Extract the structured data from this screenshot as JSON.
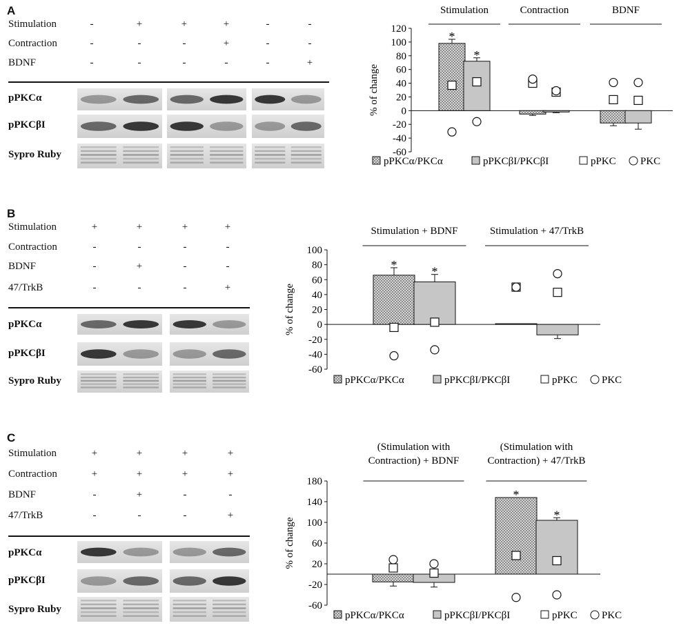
{
  "panels": [
    {
      "letter": "A",
      "conditions": [
        {
          "label": "Stimulation",
          "signs": [
            "-",
            "+",
            "+",
            "+",
            "-",
            "-"
          ]
        },
        {
          "label": "Contraction",
          "signs": [
            "-",
            "-",
            "-",
            "+",
            "-",
            "-"
          ]
        },
        {
          "label": "BDNF",
          "signs": [
            "-",
            "-",
            "-",
            "-",
            "-",
            "+"
          ]
        }
      ],
      "blots": [
        "pPKCα",
        "pPKCβI",
        "Sypro Ruby"
      ],
      "chart_data": {
        "type": "bar",
        "ylabel": "% of change",
        "ylim": [
          -60,
          120
        ],
        "yticks": [
          -60,
          -40,
          -20,
          0,
          20,
          40,
          60,
          80,
          100,
          120
        ],
        "groups": [
          "Stimulation",
          "Contraction",
          "BDNF"
        ],
        "series": [
          {
            "name": "pPKCα/PKCα",
            "values": [
              98,
              -5,
              -18
            ],
            "errors": [
              6,
              2,
              4
            ],
            "significant": [
              true,
              false,
              false
            ]
          },
          {
            "name": "pPKCβI/PKCβI",
            "values": [
              72,
              -2,
              -18
            ],
            "errors": [
              5,
              1,
              9
            ],
            "significant": [
              true,
              false,
              false
            ]
          }
        ],
        "markers": [
          {
            "name": "pPKC",
            "values": [
              [
                37,
                42
              ],
              [
                40,
                27
              ],
              [
                16,
                15
              ]
            ]
          },
          {
            "name": "PKC",
            "values": [
              [
                -31,
                -16
              ],
              [
                46,
                29
              ],
              [
                41,
                41
              ]
            ]
          }
        ]
      }
    },
    {
      "letter": "B",
      "conditions": [
        {
          "label": "Stimulation",
          "signs": [
            "+",
            "+",
            "+",
            "+"
          ]
        },
        {
          "label": "Contraction",
          "signs": [
            "-",
            "-",
            "-",
            "-"
          ]
        },
        {
          "label": "BDNF",
          "signs": [
            "-",
            "+",
            "-",
            "-"
          ]
        },
        {
          "label": "47/TrkB",
          "signs": [
            "-",
            "-",
            "-",
            "+"
          ]
        }
      ],
      "blots": [
        "pPKCα",
        "pPKCβI",
        "Sypro Ruby"
      ],
      "chart_data": {
        "type": "bar",
        "ylabel": "% of change",
        "ylim": [
          -60,
          100
        ],
        "yticks": [
          -60,
          -40,
          -20,
          0,
          20,
          40,
          60,
          80,
          100
        ],
        "groups": [
          "Stimulation + BDNF",
          "Stimulation + 47/TrkB"
        ],
        "series": [
          {
            "name": "pPKCα/PKCα",
            "values": [
              66,
              1
            ],
            "errors": [
              10,
              0
            ],
            "significant": [
              true,
              false
            ]
          },
          {
            "name": "pPKCβI/PKCβI",
            "values": [
              57,
              -14
            ],
            "errors": [
              10,
              5
            ],
            "significant": [
              true,
              false
            ]
          }
        ],
        "markers": [
          {
            "name": "pPKC",
            "values": [
              [
                -4,
                3
              ],
              [
                50,
                43
              ]
            ]
          },
          {
            "name": "PKC",
            "values": [
              [
                -42,
                -34
              ],
              [
                50,
                68
              ]
            ]
          }
        ]
      }
    },
    {
      "letter": "C",
      "conditions": [
        {
          "label": "Stimulation",
          "signs": [
            "+",
            "+",
            "+",
            "+"
          ]
        },
        {
          "label": "Contraction",
          "signs": [
            "+",
            "+",
            "+",
            "+"
          ]
        },
        {
          "label": "BDNF",
          "signs": [
            "-",
            "+",
            "-",
            "-"
          ]
        },
        {
          "label": "47/TrkB",
          "signs": [
            "-",
            "-",
            "-",
            "+"
          ]
        }
      ],
      "blots": [
        "pPKCα",
        "pPKCβI",
        "Sypro Ruby"
      ],
      "chart_data": {
        "type": "bar",
        "ylabel": "% of change",
        "ylim": [
          -60,
          180
        ],
        "yticks": [
          -60,
          -20,
          20,
          60,
          100,
          140,
          180
        ],
        "groups": [
          "(Stimulation with|Contraction)  + BDNF",
          "(Stimulation with|Contraction) + 47/TrkB"
        ],
        "series": [
          {
            "name": "pPKCα/PKCα",
            "values": [
              -15,
              148
            ],
            "errors": [
              8,
              0
            ],
            "significant": [
              false,
              true
            ]
          },
          {
            "name": "pPKCβI/PKCβI",
            "values": [
              -16,
              104
            ],
            "errors": [
              9,
              5
            ],
            "significant": [
              false,
              true
            ]
          }
        ],
        "markers": [
          {
            "name": "pPKC",
            "values": [
              [
                12,
                2
              ],
              [
                36,
                26
              ]
            ]
          },
          {
            "name": "PKC",
            "values": [
              [
                28,
                20
              ],
              [
                -45,
                -40
              ]
            ]
          }
        ]
      }
    }
  ]
}
